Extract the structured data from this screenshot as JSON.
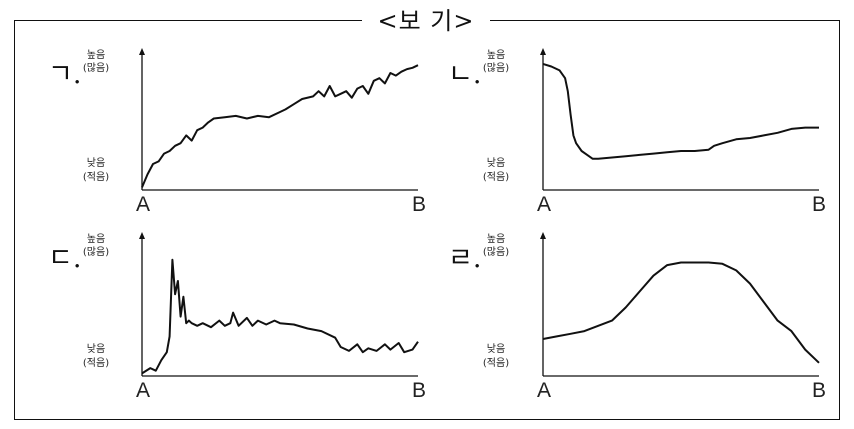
{
  "box_title": "<보 기>",
  "chart_data": [
    {
      "type": "line",
      "marker": "ㄱ.",
      "y_high_label": [
        "높음",
        "(많음)"
      ],
      "y_low_label": [
        "낮음",
        "(적음)"
      ],
      "x_start_label": "A",
      "x_end_label": "B",
      "xlim": [
        0,
        100
      ],
      "ylim": [
        0,
        100
      ],
      "grid": false,
      "x": [
        0,
        2,
        4,
        6,
        8,
        10,
        12,
        14,
        16,
        18,
        20,
        22,
        24,
        26,
        30,
        34,
        38,
        42,
        46,
        50,
        52,
        55,
        58,
        62,
        64,
        66,
        68,
        70,
        72,
        74,
        76,
        78,
        80,
        82,
        84,
        86,
        88,
        90,
        92,
        94,
        96,
        98,
        100
      ],
      "y": [
        2,
        12,
        20,
        22,
        28,
        30,
        34,
        36,
        42,
        38,
        46,
        48,
        52,
        55,
        56,
        57,
        55,
        57,
        56,
        60,
        62,
        66,
        70,
        72,
        76,
        72,
        80,
        72,
        74,
        76,
        71,
        78,
        80,
        74,
        84,
        86,
        82,
        90,
        88,
        91,
        93,
        94,
        96
      ]
    },
    {
      "type": "line",
      "marker": "ㄴ.",
      "y_high_label": [
        "높음",
        "(많음)"
      ],
      "y_low_label": [
        "낮음",
        "(적음)"
      ],
      "x_start_label": "A",
      "x_end_label": "B",
      "xlim": [
        0,
        100
      ],
      "ylim": [
        0,
        100
      ],
      "grid": false,
      "x": [
        0,
        3,
        6,
        8,
        9,
        10,
        11,
        12,
        14,
        16,
        18,
        20,
        25,
        30,
        35,
        40,
        45,
        50,
        55,
        60,
        62,
        65,
        70,
        75,
        80,
        85,
        90,
        95,
        100
      ],
      "y": [
        97,
        95,
        92,
        86,
        76,
        58,
        42,
        36,
        30,
        27,
        24,
        24,
        25,
        26,
        27,
        28,
        29,
        30,
        30,
        31,
        34,
        36,
        39,
        40,
        42,
        44,
        47,
        48,
        48
      ]
    },
    {
      "type": "line",
      "marker": "ㄷ.",
      "y_high_label": [
        "높음",
        "(많음)"
      ],
      "y_low_label": [
        "낮음",
        "(적음)"
      ],
      "x_start_label": "A",
      "x_end_label": "B",
      "xlim": [
        0,
        100
      ],
      "ylim": [
        0,
        100
      ],
      "grid": false,
      "x": [
        0,
        3,
        5,
        7,
        9,
        10,
        11,
        12,
        13,
        14,
        15,
        16,
        17,
        18,
        20,
        22,
        25,
        28,
        30,
        32,
        33,
        35,
        38,
        40,
        42,
        45,
        48,
        50,
        55,
        60,
        65,
        70,
        72,
        75,
        78,
        80,
        82,
        85,
        88,
        90,
        93,
        95,
        98,
        100
      ],
      "y": [
        2,
        6,
        4,
        12,
        18,
        30,
        88,
        62,
        72,
        45,
        60,
        40,
        42,
        40,
        38,
        40,
        37,
        42,
        38,
        40,
        48,
        38,
        44,
        38,
        42,
        39,
        42,
        40,
        39,
        36,
        34,
        29,
        22,
        19,
        24,
        18,
        21,
        19,
        24,
        20,
        25,
        18,
        20,
        26
      ]
    },
    {
      "type": "line",
      "marker": "ㄹ.",
      "y_high_label": [
        "높음",
        "(많음)"
      ],
      "y_low_label": [
        "낮음",
        "(적음)"
      ],
      "x_start_label": "A",
      "x_end_label": "B",
      "xlim": [
        0,
        100
      ],
      "ylim": [
        0,
        100
      ],
      "grid": false,
      "x": [
        0,
        5,
        10,
        15,
        20,
        25,
        30,
        35,
        40,
        45,
        50,
        55,
        60,
        65,
        70,
        75,
        80,
        85,
        90,
        95,
        100
      ],
      "y": [
        28,
        30,
        32,
        34,
        38,
        42,
        52,
        64,
        76,
        84,
        86,
        86,
        86,
        85,
        80,
        70,
        56,
        42,
        34,
        20,
        10
      ]
    }
  ]
}
